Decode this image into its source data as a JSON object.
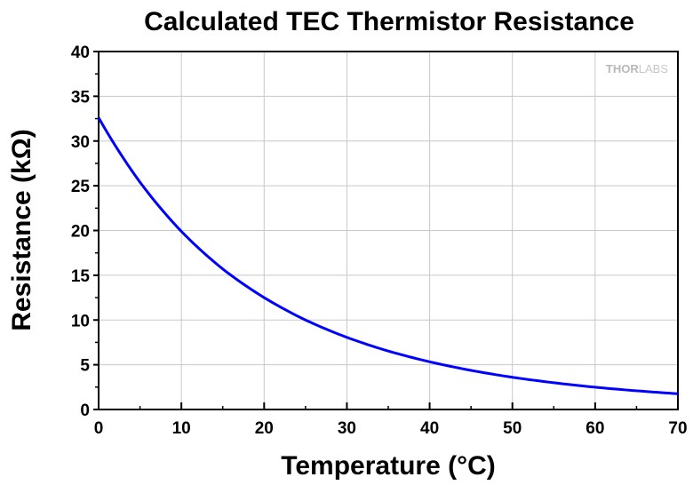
{
  "chart_data": {
    "type": "line",
    "title": "Calculated TEC Thermistor Resistance",
    "xlabel": "Temperature (°C)",
    "ylabel": "Resistance (kΩ)",
    "xlim": [
      0,
      70
    ],
    "ylim": [
      0,
      40
    ],
    "x_ticks": [
      0,
      10,
      20,
      30,
      40,
      50,
      60,
      70
    ],
    "y_ticks": [
      0,
      5,
      10,
      15,
      20,
      25,
      30,
      35,
      40
    ],
    "grid": true,
    "series": [
      {
        "color": "#0000ff",
        "x": [
          0,
          5,
          10,
          15,
          20,
          25,
          30,
          35,
          40,
          45,
          50,
          55,
          60,
          65,
          70
        ],
        "y": [
          32.6,
          25.4,
          19.9,
          15.7,
          12.5,
          10.0,
          8.06,
          6.53,
          5.33,
          4.37,
          3.6,
          2.99,
          2.49,
          2.09,
          1.76
        ]
      }
    ],
    "watermark": {
      "bold": "THOR",
      "light": "LABS"
    }
  }
}
